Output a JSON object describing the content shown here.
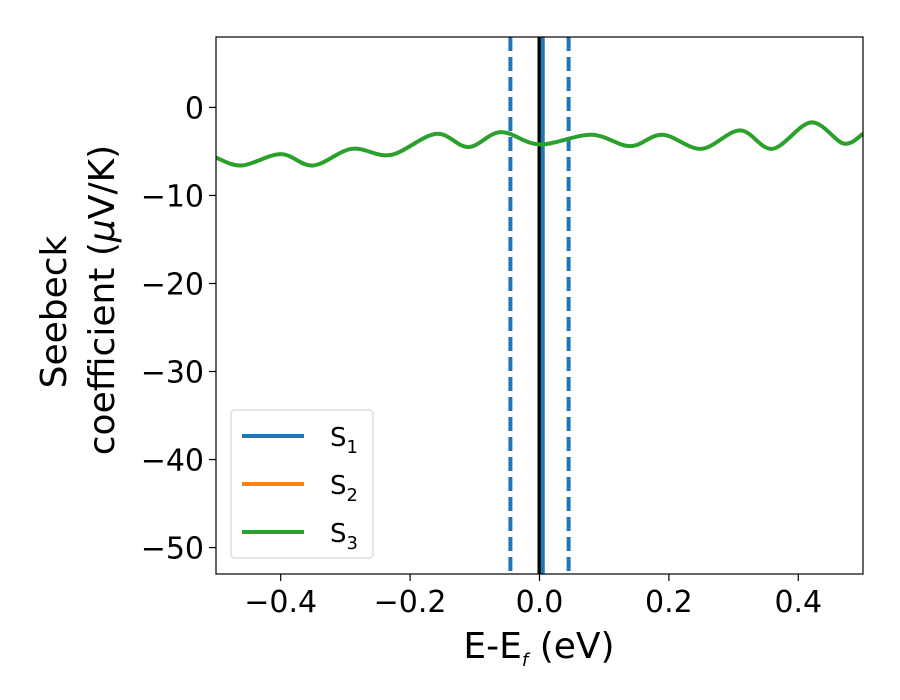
{
  "chart_data": {
    "type": "line",
    "title": "",
    "xlabel": "E-E",
    "xlabel_sub": "f",
    "xlabel_unit": " (eV)",
    "ylabel_line1": "Seebeck",
    "ylabel_line2": "coefficient  (",
    "ylabel_mu": "μ",
    "ylabel_unit": "V/K)",
    "xlim": [
      -0.5,
      0.5
    ],
    "ylim": [
      -53,
      8
    ],
    "x_ticks": [
      -0.4,
      -0.2,
      0.0,
      0.2,
      0.4
    ],
    "x_tick_labels": [
      "−0.4",
      "−0.2",
      "0.0",
      "0.2",
      "0.4"
    ],
    "y_ticks": [
      0,
      -10,
      -20,
      -30,
      -40,
      -50
    ],
    "y_tick_labels": [
      "0",
      "−10",
      "−20",
      "−30",
      "−40",
      "−50"
    ],
    "grid": false,
    "legend_position": "lower-left",
    "series": [
      {
        "name": "S",
        "sub": "1",
        "color": "#1f77b4",
        "x": [],
        "y": []
      },
      {
        "name": "S",
        "sub": "2",
        "color": "#ff7f0e",
        "x": [],
        "y": []
      },
      {
        "name": "S",
        "sub": "3",
        "color": "#2ca02c",
        "x": [
          -0.5,
          -0.46,
          -0.4,
          -0.35,
          -0.29,
          -0.23,
          -0.16,
          -0.11,
          -0.06,
          0.0,
          0.08,
          0.14,
          0.19,
          0.25,
          0.31,
          0.36,
          0.42,
          0.47,
          0.5
        ],
        "y": [
          -5.7,
          -6.6,
          -5.3,
          -6.6,
          -4.7,
          -5.4,
          -3.0,
          -4.5,
          -2.8,
          -4.2,
          -3.1,
          -4.4,
          -3.1,
          -4.7,
          -2.6,
          -4.7,
          -1.7,
          -4.1,
          -3.0
        ]
      }
    ],
    "vlines": [
      {
        "x": -0.045,
        "style": "dashed",
        "color": "#1f77b4"
      },
      {
        "x": 0.045,
        "style": "dashed",
        "color": "#1f77b4"
      },
      {
        "x": 0.0,
        "style": "solid",
        "color": "#000000"
      },
      {
        "x": 0.005,
        "style": "solid",
        "color": "#1f77b4"
      }
    ]
  }
}
